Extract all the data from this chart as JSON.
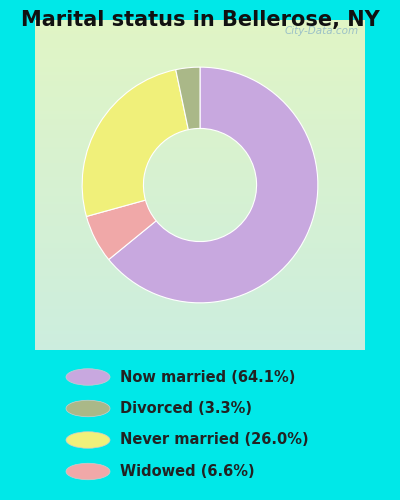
{
  "title": "Marital status in Bellerose, NY",
  "slices": [
    64.1,
    3.3,
    26.0,
    6.6
  ],
  "labels": [
    "Now married (64.1%)",
    "Divorced (3.3%)",
    "Never married (26.0%)",
    "Widowed (6.6%)"
  ],
  "colors": [
    "#c8a8df",
    "#aab888",
    "#f0f07a",
    "#f0a8a8"
  ],
  "background_outer": "#00e8e8",
  "chart_bg_tl": [
    0.82,
    0.93,
    0.88
  ],
  "chart_bg_br": [
    0.88,
    0.96,
    0.84
  ],
  "title_fontsize": 15,
  "watermark": "City-Data.com",
  "donut_outer_r": 1.0,
  "donut_width": 0.52,
  "plot_order": [
    0,
    3,
    2,
    1
  ],
  "start_angle": 90
}
